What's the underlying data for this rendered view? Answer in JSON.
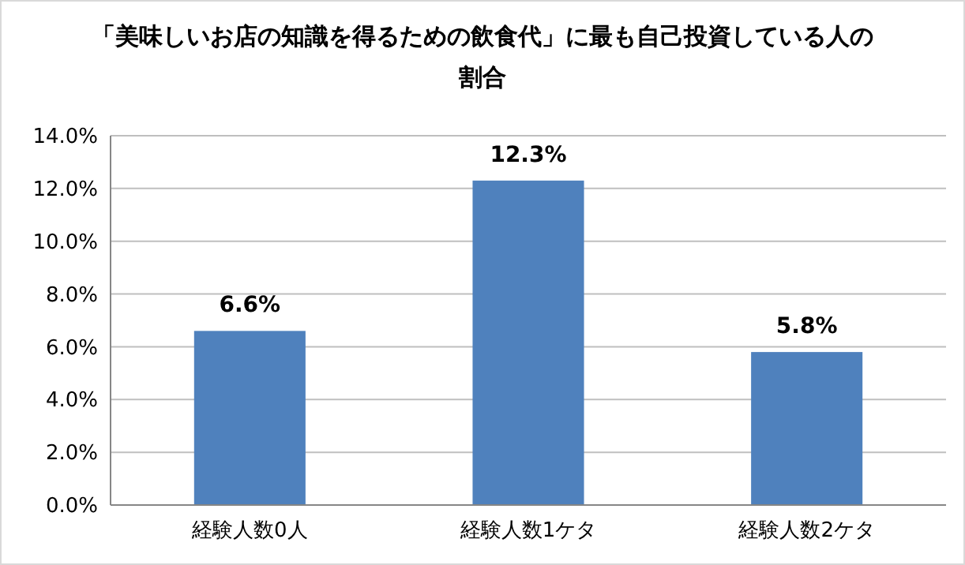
{
  "chart_data": {
    "type": "bar",
    "title": "「美味しいお店の知識を得るための飲食代」に最も自己投資している人の割合",
    "categories": [
      "経験人数0人",
      "経験人数1ケタ",
      "経験人数2ケタ"
    ],
    "values": [
      6.6,
      12.3,
      5.8
    ],
    "color": "#4f81bd",
    "value_labels": [
      "6.6%",
      "12.3%",
      "5.8%"
    ],
    "ylim": [
      0,
      14
    ],
    "yticks": [
      {
        "value": 0,
        "label": "0.0%"
      },
      {
        "value": 2,
        "label": "2.0%"
      },
      {
        "value": 4,
        "label": "4.0%"
      },
      {
        "value": 6,
        "label": "6.0%"
      },
      {
        "value": 8,
        "label": "8.0%"
      },
      {
        "value": 10,
        "label": "10.0%"
      },
      {
        "value": 12,
        "label": "12.0%"
      },
      {
        "value": 14,
        "label": "14.0%"
      }
    ],
    "grid": true
  }
}
